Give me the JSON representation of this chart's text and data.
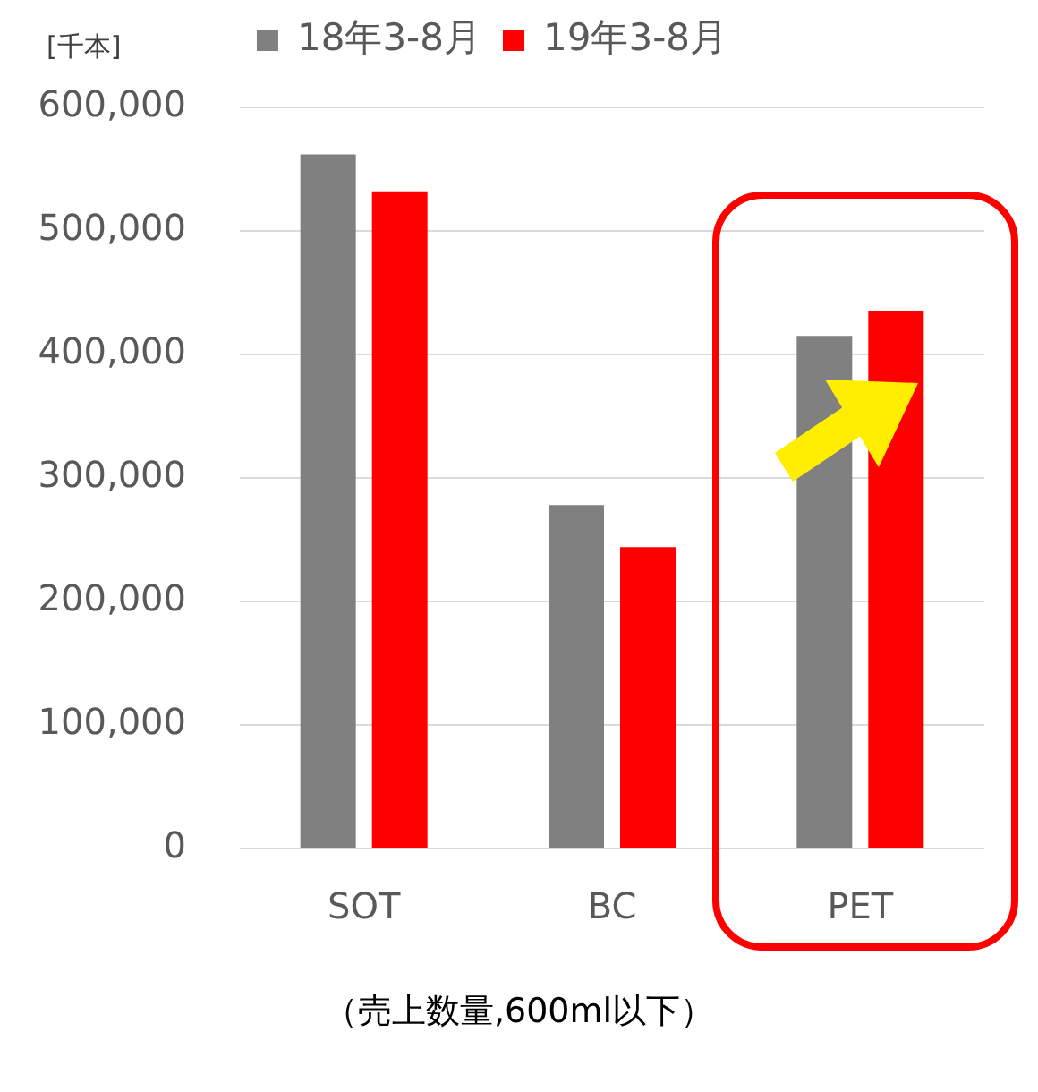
{
  "chart_data": {
    "type": "bar",
    "ylabel": "[千本]",
    "categories": [
      "SOT",
      "BC",
      "PET"
    ],
    "series": [
      {
        "name": "18年3-8月",
        "color": "#808080",
        "values": [
          562000,
          278000,
          415000
        ]
      },
      {
        "name": "19年3-8月",
        "color": "#ff0000",
        "values": [
          532000,
          244000,
          435000
        ]
      }
    ],
    "ylim": [
      0,
      600000
    ],
    "yticks": [
      {
        "value": 0,
        "label": "0"
      },
      {
        "value": 100000,
        "label": "100,000"
      },
      {
        "value": 200000,
        "label": "200,000"
      },
      {
        "value": 300000,
        "label": "300,000"
      },
      {
        "value": 400000,
        "label": "400,000"
      },
      {
        "value": 500000,
        "label": "500,000"
      },
      {
        "value": 600000,
        "label": "600,000"
      }
    ],
    "grid": "y",
    "legend": "top",
    "annotations": [
      "（売上数量,600ml以下）"
    ]
  }
}
